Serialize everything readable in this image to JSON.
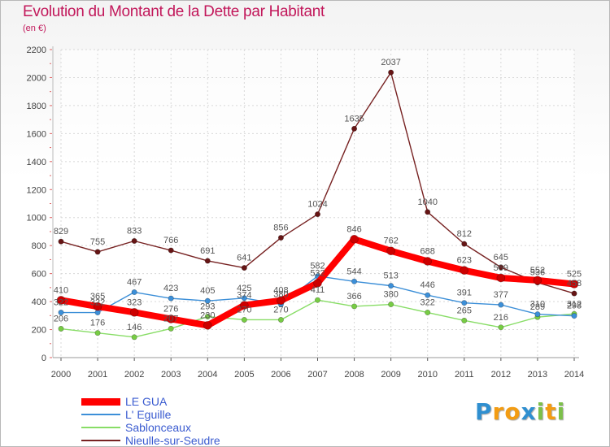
{
  "title": "Evolution du Montant de la Dette par Habitant",
  "unit_label": "(en €)",
  "logo": {
    "text": "Proxiti",
    "letters": [
      "P",
      "r",
      "o",
      "x",
      "i",
      "t",
      "i"
    ],
    "letter_colors": [
      "#2f8fd0",
      "#f39c12",
      "#f39c12",
      "#2f8fd0",
      "#7cc04a",
      "#f39c12",
      "#7cc04a"
    ]
  },
  "chart_data": {
    "type": "line",
    "title": "Evolution du Montant de la Dette par Habitant",
    "ylabel": "(en €)",
    "xlabel": "",
    "x": [
      "2000",
      "2001",
      "2002",
      "2003",
      "2004",
      "2005",
      "2006",
      "2007",
      "2008",
      "2009",
      "2010",
      "2011",
      "2012",
      "2013",
      "2014"
    ],
    "ylim": [
      0,
      2200
    ],
    "yticks": [
      "0",
      "200",
      "400",
      "600",
      "800",
      "1000",
      "1200",
      "1400",
      "1600",
      "1800",
      "2000",
      "2200"
    ],
    "grid": true,
    "legend_position": "bottom-left",
    "series": [
      {
        "name": "LE GUA",
        "color": "#ff0000",
        "marker_color": "#cc0000",
        "values": [
          410,
          365,
          323,
          276,
          230,
          374,
          408,
          532,
          846,
          762,
          688,
          623,
          569,
          552,
          525
        ],
        "labels": [
          "410",
          "365",
          "323",
          "276",
          "230",
          "374",
          "408",
          "532",
          "846",
          "762",
          "688",
          "623",
          "569",
          "552",
          "525"
        ]
      },
      {
        "name": "L' Eguille",
        "color": "#3c8fd8",
        "marker_color": "#3c8fd8",
        "values": [
          322,
          322,
          467,
          423,
          405,
          425,
          380,
          582,
          544,
          513,
          446,
          391,
          377,
          310,
          298
        ],
        "labels": [
          "322",
          "322",
          "467",
          "423",
          "405",
          "425",
          "380",
          "582",
          "544",
          "513",
          "446",
          "391",
          "377",
          "310",
          "298"
        ]
      },
      {
        "name": "Sablonceaux",
        "color": "#88dd66",
        "marker_color": "#77cc44",
        "values": [
          206,
          176,
          146,
          207,
          293,
          270,
          270,
          411,
          366,
          380,
          322,
          265,
          216,
          289,
          312
        ],
        "labels": [
          "206",
          "176",
          "146",
          "207",
          "293",
          "270",
          "270",
          "411",
          "366",
          "380",
          "322",
          "265",
          "216",
          "289",
          "312"
        ]
      },
      {
        "name": "Nieulle-sur-Seudre",
        "color": "#772222",
        "marker_color": "#661515",
        "values": [
          829,
          755,
          833,
          766,
          691,
          641,
          856,
          1024,
          1635,
          2037,
          1040,
          812,
          645,
          536,
          458
        ],
        "labels": [
          "829",
          "755",
          "833",
          "766",
          "691",
          "641",
          "856",
          "1024",
          "1635",
          "2037",
          "1040",
          "812",
          "645",
          "536",
          "458"
        ]
      }
    ]
  }
}
